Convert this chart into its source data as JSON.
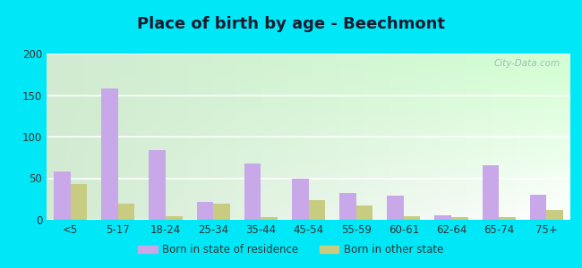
{
  "title": "Place of birth by age - Beechmont",
  "categories": [
    "<5",
    "5-17",
    "18-24",
    "25-34",
    "35-44",
    "45-54",
    "55-59",
    "60-61",
    "62-64",
    "65-74",
    "75+"
  ],
  "born_in_state": [
    58,
    158,
    84,
    22,
    68,
    49,
    32,
    29,
    5,
    66,
    30
  ],
  "born_other_state": [
    43,
    19,
    4,
    19,
    3,
    24,
    17,
    4,
    3,
    3,
    12
  ],
  "bar_color_state": "#c8a8e8",
  "bar_color_other": "#c8cc80",
  "ylim": [
    0,
    200
  ],
  "yticks": [
    0,
    50,
    100,
    150,
    200
  ],
  "legend_state": "Born in state of residence",
  "legend_other": "Born in other state",
  "outer_bg": "#00e8f8",
  "title_fontsize": 13,
  "bar_width": 0.35
}
